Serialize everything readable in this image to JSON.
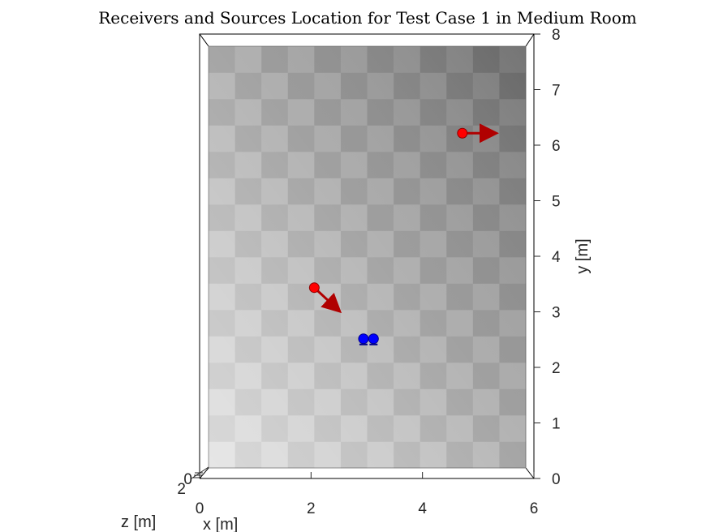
{
  "chart_data": {
    "type": "scatter",
    "title": "Receivers and Sources Location for Test Case 1 in Medium Room",
    "xlabel": "x [m]",
    "ylabel": "y [m]",
    "zlabel": "z [m]",
    "xlim": [
      0,
      6
    ],
    "ylim": [
      0,
      8
    ],
    "xticks": [
      "0",
      "2",
      "4",
      "6"
    ],
    "yticks": [
      "0",
      "1",
      "2",
      "3",
      "4",
      "5",
      "6",
      "7",
      "8"
    ],
    "zticks": [
      "0",
      "2"
    ],
    "view": "top-down 3D view of room floor",
    "floor_pattern": "checkerboard",
    "series": [
      {
        "role": "sources",
        "color": "#ff0000",
        "points": [
          {
            "x": 2.0,
            "y": 3.42,
            "dx": 0.45,
            "dy": -0.42
          },
          {
            "x": 4.8,
            "y": 6.35,
            "dx": 0.6,
            "dy": 0.0
          }
        ]
      },
      {
        "role": "receivers",
        "color": "#0000ff",
        "points": [
          {
            "x": 2.93,
            "y": 2.45
          },
          {
            "x": 3.12,
            "y": 2.45
          }
        ]
      }
    ]
  }
}
